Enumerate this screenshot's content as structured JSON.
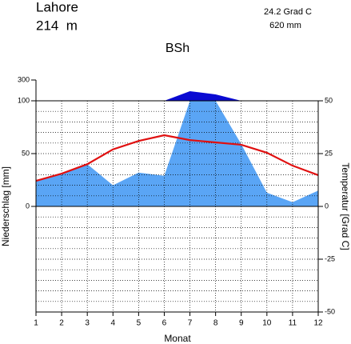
{
  "chart_data": {
    "type": "climate",
    "station": "Lahore",
    "elevation": "214  m",
    "mean_temperature": "24.2 Grad C",
    "annual_precipitation": "620 mm",
    "title": "BSh",
    "xlabel": "Monat",
    "ylabel": "Niederschlag [mm]",
    "y2label": "Temperatur [Grad C]",
    "x": [
      1,
      2,
      3,
      4,
      5,
      6,
      7,
      8,
      9,
      10,
      11,
      12
    ],
    "xlim": [
      1,
      12
    ],
    "xticks": [
      1,
      2,
      3,
      4,
      5,
      6,
      7,
      8,
      9,
      10,
      11,
      12
    ],
    "ylim": [
      -100,
      300
    ],
    "ybreak": 100,
    "yticks": [
      0,
      50,
      100,
      300
    ],
    "y2lim": [
      -50,
      50
    ],
    "y2ticks": [
      50,
      25,
      0,
      -25,
      -50
    ],
    "y2minorticks": [
      -45,
      -40,
      -35,
      -30,
      -25,
      -20,
      -15,
      -10,
      -5,
      5,
      10,
      15,
      20,
      25,
      30,
      35,
      40,
      45
    ],
    "grid": true,
    "series": [
      {
        "name": "Niederschlag",
        "color": "#5aa5f5",
        "excess_color": "#0a0ad2",
        "values": [
          24,
          31,
          40,
          20,
          32,
          29,
          192,
          162,
          59,
          13,
          4,
          15
        ]
      },
      {
        "name": "Temperatur",
        "color": "#e01010",
        "axis": "y2",
        "values": [
          12.1,
          15.5,
          20,
          27,
          31,
          33.7,
          31.4,
          30.3,
          29.2,
          25.4,
          19.3,
          14.8
        ]
      }
    ]
  }
}
